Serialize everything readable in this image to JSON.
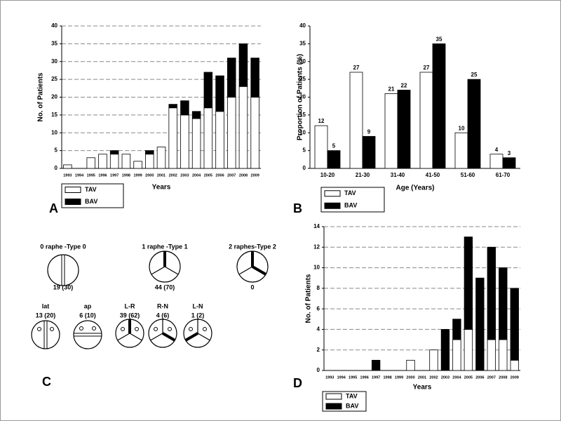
{
  "chart_data": [
    {
      "type": "bar",
      "stacked": true,
      "grid": true,
      "y_label": "No. of Patients",
      "x_label": "Years",
      "categories": [
        "1993",
        "1994",
        "1995",
        "1996",
        "1997",
        "1998",
        "1999",
        "2000",
        "2001",
        "2002",
        "2003",
        "2004",
        "2005",
        "2006",
        "2007",
        "2008",
        "2009"
      ],
      "series": [
        {
          "name": "TAV",
          "color": "#ffffff",
          "values": [
            1,
            0,
            3,
            4,
            4,
            4,
            2,
            4,
            6,
            17,
            15,
            14,
            17,
            16,
            20,
            23,
            20
          ]
        },
        {
          "name": "BAV",
          "color": "#000000",
          "values": [
            0,
            0,
            0,
            0,
            1,
            0,
            0,
            1,
            0,
            1,
            4,
            2,
            10,
            10,
            11,
            12,
            11
          ]
        }
      ],
      "ylim": [
        0,
        40
      ],
      "yticks": [
        0,
        5,
        10,
        15,
        20,
        25,
        30,
        35,
        40
      ]
    },
    {
      "type": "bar",
      "stacked": false,
      "grid": false,
      "y_label": "Proportion of Patients (%)",
      "x_label": "Age (Years)",
      "categories": [
        "10-20",
        "21-30",
        "31-40",
        "41-50",
        "51-60",
        "61-70"
      ],
      "series": [
        {
          "name": "TAV",
          "color": "#ffffff",
          "values": [
            12,
            27,
            21,
            27,
            10,
            4
          ]
        },
        {
          "name": "BAV",
          "color": "#000000",
          "values": [
            5,
            9,
            22,
            35,
            25,
            3
          ]
        }
      ],
      "ylim": [
        0,
        40
      ],
      "yticks": [
        0,
        5,
        10,
        15,
        20,
        25,
        30,
        35,
        40
      ]
    },
    {
      "type": "bar",
      "stacked": true,
      "grid": true,
      "y_label": "No. of Patients",
      "x_label": "Years",
      "categories": [
        "1993",
        "1994",
        "1995",
        "1996",
        "1997",
        "1998",
        "1999",
        "2000",
        "2001",
        "2002",
        "2003",
        "2004",
        "2005",
        "2006",
        "2007",
        "2008",
        "2009"
      ],
      "series": [
        {
          "name": "TAV",
          "color": "#ffffff",
          "values": [
            0,
            0,
            0,
            0,
            0,
            0,
            0,
            1,
            0,
            2,
            0,
            3,
            4,
            0,
            3,
            3,
            1
          ]
        },
        {
          "name": "BAV",
          "color": "#000000",
          "values": [
            0,
            0,
            0,
            0,
            1,
            0,
            0,
            0,
            0,
            0,
            4,
            2,
            9,
            9,
            9,
            7,
            7
          ]
        }
      ],
      "ylim": [
        0,
        14
      ],
      "yticks": [
        0,
        2,
        4,
        6,
        8,
        10,
        12,
        14
      ]
    }
  ],
  "panel_labels": [
    "A",
    "B",
    "C",
    "D"
  ],
  "diagram": {
    "nodes": [
      {
        "label": "0 raphe -Type 0",
        "count": "19 (30)"
      },
      {
        "label": "1 raphe -Type 1",
        "count": "44 (70)"
      },
      {
        "label": "2 raphes-Type 2",
        "count": "0"
      },
      {
        "label": "lat",
        "count": "13 (20)"
      },
      {
        "label": "ap",
        "count": "6 (10)"
      },
      {
        "label": "L-R",
        "count": "39 (62)"
      },
      {
        "label": "R-N",
        "count": "4 (6)"
      },
      {
        "label": "L-N",
        "count": "1 (2)"
      }
    ]
  }
}
